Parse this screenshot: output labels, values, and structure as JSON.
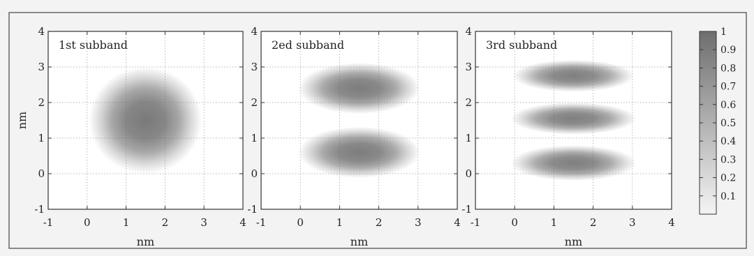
{
  "chart_data": [
    {
      "type": "heatmap",
      "title": "1st subband",
      "xlabel": "nm",
      "ylabel": "nm",
      "xlim": [
        -1,
        4
      ],
      "ylim": [
        -1,
        4
      ],
      "x_ticks": [
        -1,
        0,
        1,
        2,
        3,
        4
      ],
      "y_ticks": [
        -1,
        0,
        1,
        2,
        3,
        4
      ],
      "grid": true,
      "lobes": [
        {
          "cx": 1.5,
          "cy": 1.5,
          "rx": 1.45,
          "ry": 1.5,
          "peak": 0.92
        }
      ]
    },
    {
      "type": "heatmap",
      "title": "2ed subband",
      "xlabel": "nm",
      "ylabel": "",
      "xlim": [
        -1,
        4
      ],
      "ylim": [
        -1,
        4
      ],
      "x_ticks": [
        -1,
        0,
        1,
        2,
        3,
        4
      ],
      "y_ticks": [
        -1,
        0,
        1,
        2,
        3,
        4
      ],
      "grid": true,
      "lobes": [
        {
          "cx": 1.5,
          "cy": 2.4,
          "rx": 1.55,
          "ry": 0.72,
          "peak": 0.9
        },
        {
          "cx": 1.5,
          "cy": 0.6,
          "rx": 1.55,
          "ry": 0.72,
          "peak": 0.9
        }
      ]
    },
    {
      "type": "heatmap",
      "title": "3rd subband",
      "xlabel": "nm",
      "ylabel": "",
      "xlim": [
        -1,
        4
      ],
      "ylim": [
        -1,
        4
      ],
      "x_ticks": [
        -1,
        0,
        1,
        2,
        3,
        4
      ],
      "y_ticks": [
        -1,
        0,
        1,
        2,
        3,
        4
      ],
      "grid": true,
      "lobes": [
        {
          "cx": 1.5,
          "cy": 2.75,
          "rx": 1.55,
          "ry": 0.45,
          "peak": 0.88
        },
        {
          "cx": 1.5,
          "cy": 1.55,
          "rx": 1.6,
          "ry": 0.45,
          "peak": 0.88
        },
        {
          "cx": 1.5,
          "cy": 0.3,
          "rx": 1.6,
          "ry": 0.5,
          "peak": 0.88
        }
      ]
    }
  ],
  "colorbar": {
    "min": 0,
    "max": 1,
    "ticks": [
      "1",
      "0.9",
      "0.8",
      "0.7",
      "0.6",
      "0.5",
      "0.4",
      "0.3",
      "0.2",
      "0.1"
    ],
    "color_low": "#f4f4f4",
    "color_high": "#6e6e6e"
  }
}
